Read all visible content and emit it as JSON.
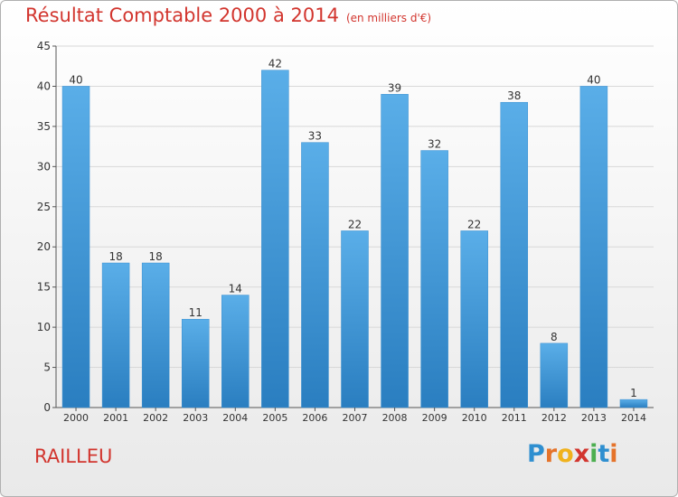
{
  "chart_data": {
    "type": "bar",
    "title": "Résultat Comptable 2000 à 2014",
    "subtitle": "(en milliers d'€)",
    "categories": [
      "2000",
      "2001",
      "2002",
      "2003",
      "2004",
      "2005",
      "2006",
      "2007",
      "2008",
      "2009",
      "2010",
      "2011",
      "2012",
      "2013",
      "2014"
    ],
    "values": [
      40,
      18,
      18,
      11,
      14,
      42,
      33,
      22,
      39,
      32,
      22,
      38,
      8,
      40,
      1
    ],
    "ylim": [
      0,
      45
    ],
    "yticks": [
      0,
      5,
      10,
      15,
      20,
      25,
      30,
      35,
      40,
      45
    ],
    "xlabel": "",
    "ylabel": "",
    "grid": true,
    "bar_color": "#4d9fdc"
  },
  "commune": "RAILLEU",
  "logo": {
    "letters": [
      {
        "char": "P",
        "color": "#2f8fd0"
      },
      {
        "char": "r",
        "color": "#e5732a"
      },
      {
        "char": "o",
        "color": "#f0b21c"
      },
      {
        "char": "x",
        "color": "#d2352e"
      },
      {
        "char": "i",
        "color": "#4caf50"
      },
      {
        "char": "t",
        "color": "#2f8fd0"
      },
      {
        "char": "i",
        "color": "#e5732a"
      }
    ]
  }
}
